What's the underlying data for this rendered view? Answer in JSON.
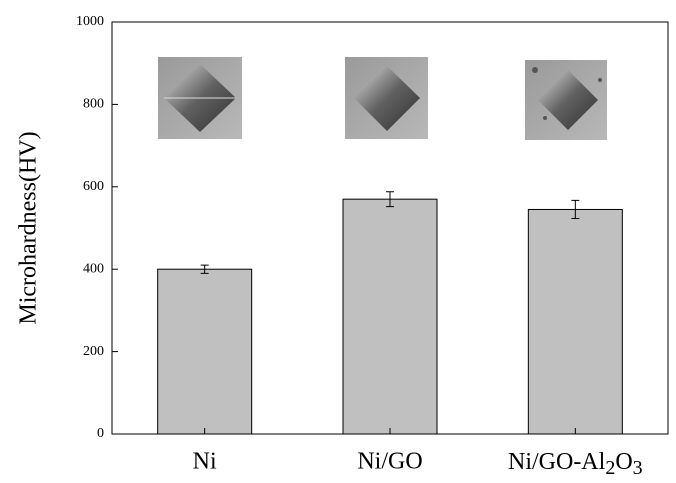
{
  "chart_data": {
    "type": "bar",
    "y_label": "Microhardness(HV)",
    "categories": [
      "Ni",
      "Ni/GO",
      "Ni/GO-Al2O3"
    ],
    "values": [
      400,
      570,
      545
    ],
    "errors": [
      10,
      18,
      22
    ],
    "color": "#c0c0c0",
    "ylim": [
      0,
      1000
    ],
    "yticks": [
      0,
      200,
      400,
      600,
      800,
      1000
    ]
  }
}
